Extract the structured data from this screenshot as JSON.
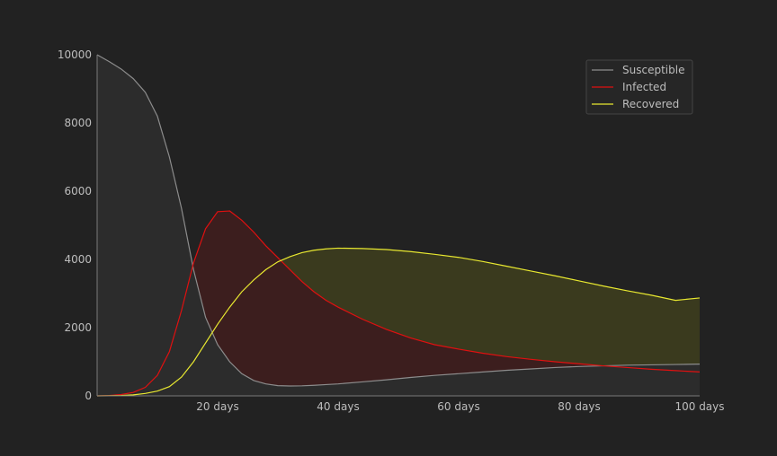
{
  "chart_data": {
    "type": "area",
    "x_ticks": [
      20,
      40,
      60,
      80,
      100
    ],
    "x_tick_labels": [
      "20 days",
      "40 days",
      "60 days",
      "80 days",
      "100 days"
    ],
    "y_ticks": [
      0,
      2000,
      4000,
      6000,
      8000,
      10000
    ],
    "y_tick_labels": [
      "0",
      "2000",
      "4000",
      "6000",
      "8000",
      "10000"
    ],
    "xlim": [
      0,
      100
    ],
    "ylim": [
      0,
      10000
    ],
    "grid": false,
    "legend_position": "top-right",
    "x": [
      0,
      2,
      4,
      6,
      8,
      10,
      12,
      14,
      16,
      18,
      20,
      22,
      24,
      26,
      28,
      30,
      32,
      34,
      36,
      38,
      40,
      44,
      48,
      52,
      56,
      60,
      64,
      68,
      72,
      76,
      80,
      84,
      88,
      92,
      96,
      100
    ],
    "series": [
      {
        "name": "Susceptible",
        "color": "#8c8c8c",
        "fill": "#2c2c2c",
        "values": [
          10000,
          9800,
          9580,
          9300,
          8900,
          8200,
          7000,
          5500,
          3700,
          2300,
          1500,
          1000,
          650,
          450,
          350,
          300,
          290,
          295,
          310,
          330,
          350,
          410,
          470,
          540,
          600,
          650,
          700,
          750,
          790,
          830,
          860,
          880,
          900,
          910,
          920,
          930
        ]
      },
      {
        "name": "Infected",
        "color": "#e01010",
        "fill": "#3c1e1e",
        "values": [
          0,
          10,
          40,
          100,
          250,
          600,
          1300,
          2500,
          3900,
          4900,
          5400,
          5420,
          5150,
          4800,
          4400,
          4050,
          3700,
          3350,
          3050,
          2800,
          2600,
          2250,
          1950,
          1700,
          1500,
          1370,
          1250,
          1150,
          1070,
          1000,
          940,
          880,
          830,
          780,
          740,
          700
        ]
      },
      {
        "name": "Recovered",
        "color": "#e8e830",
        "fill": "#3a3a1e",
        "values": [
          0,
          3,
          10,
          30,
          70,
          140,
          270,
          550,
          1000,
          1550,
          2100,
          2600,
          3050,
          3400,
          3700,
          3930,
          4080,
          4200,
          4270,
          4310,
          4330,
          4320,
          4290,
          4230,
          4150,
          4060,
          3940,
          3800,
          3660,
          3520,
          3370,
          3220,
          3080,
          2950,
          2800,
          2870
        ]
      }
    ]
  }
}
